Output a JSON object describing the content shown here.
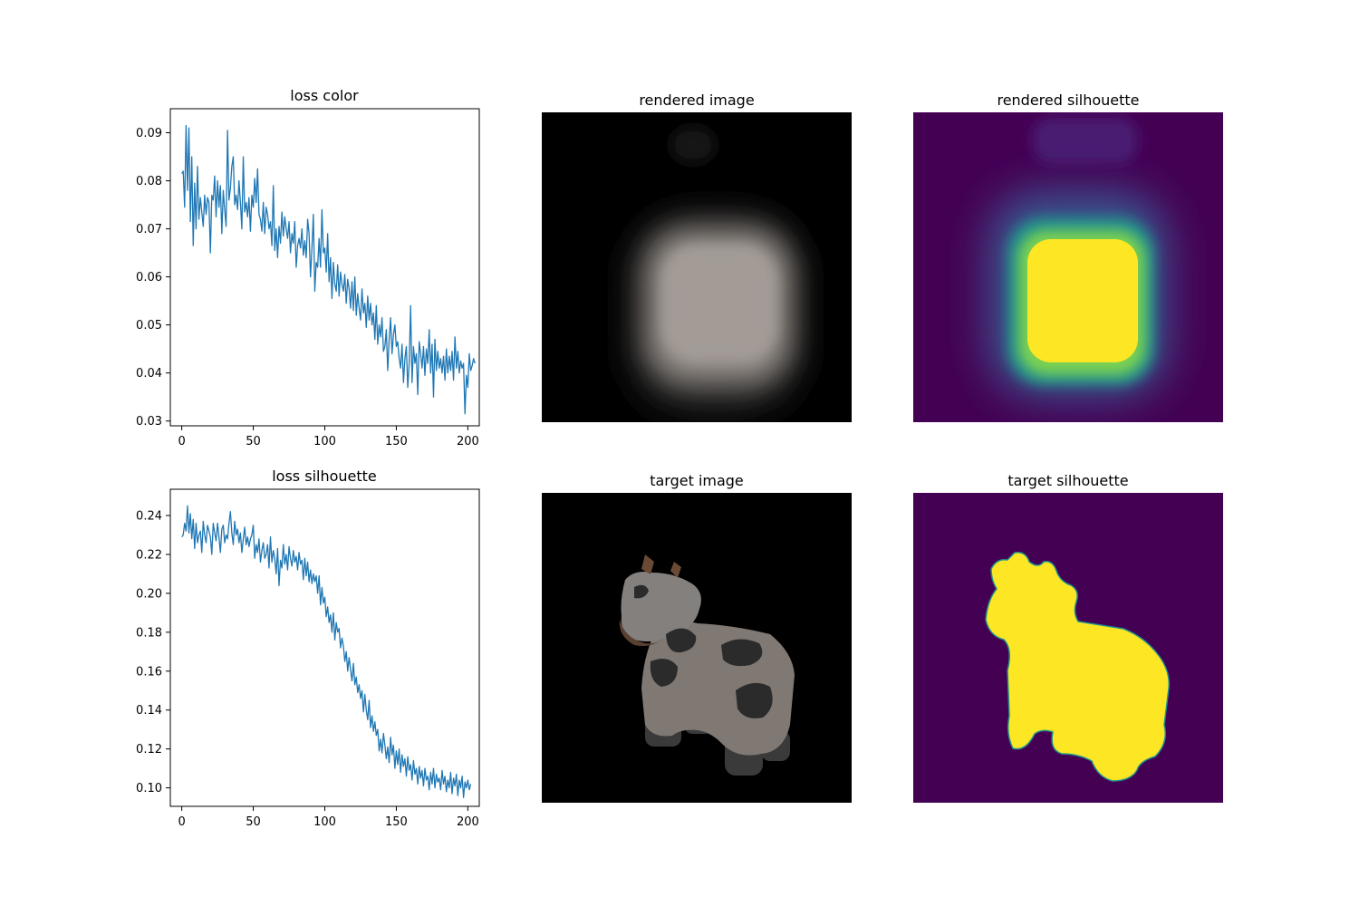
{
  "chart_data": [
    {
      "type": "line",
      "title": "loss color",
      "xlabel": "",
      "ylabel": "",
      "xlim": [
        -8,
        208
      ],
      "ylim": [
        0.029,
        0.095
      ],
      "xticks": [
        0,
        50,
        100,
        150,
        200
      ],
      "xtick_labels": [
        "0",
        "50",
        "100",
        "150",
        "200"
      ],
      "yticks": [
        0.03,
        0.04,
        0.05,
        0.06,
        0.07,
        0.08,
        0.09
      ],
      "ytick_labels": [
        "0.03",
        "0.04",
        "0.05",
        "0.06",
        "0.07",
        "0.08",
        "0.09"
      ],
      "grid": false,
      "series": [
        {
          "color": "#1f77b4",
          "x_start": 0,
          "x_step": 1,
          "y": [
            0.0815,
            0.082,
            0.0745,
            0.0915,
            0.078,
            0.091,
            0.0715,
            0.085,
            0.0665,
            0.0795,
            0.07,
            0.083,
            0.072,
            0.0765,
            0.0735,
            0.0705,
            0.077,
            0.073,
            0.0765,
            0.0755,
            0.065,
            0.077,
            0.076,
            0.081,
            0.0725,
            0.08,
            0.0745,
            0.079,
            0.069,
            0.078,
            0.074,
            0.0705,
            0.0905,
            0.076,
            0.0785,
            0.083,
            0.085,
            0.075,
            0.077,
            0.074,
            0.08,
            0.0755,
            0.07,
            0.085,
            0.0735,
            0.0755,
            0.0725,
            0.0765,
            0.0695,
            0.077,
            0.0745,
            0.0805,
            0.0755,
            0.0825,
            0.073,
            0.072,
            0.0695,
            0.0755,
            0.069,
            0.0745,
            0.073,
            0.07,
            0.0715,
            0.0665,
            0.079,
            0.0655,
            0.07,
            0.064,
            0.0705,
            0.067,
            0.0735,
            0.0685,
            0.0725,
            0.07,
            0.068,
            0.0715,
            0.065,
            0.069,
            0.067,
            0.0715,
            0.062,
            0.0665,
            0.068,
            0.066,
            0.07,
            0.0645,
            0.0675,
            0.064,
            0.072,
            0.069,
            0.06,
            0.066,
            0.073,
            0.057,
            0.063,
            0.062,
            0.068,
            0.062,
            0.074,
            0.065,
            0.066,
            0.061,
            0.069,
            0.059,
            0.064,
            0.0555,
            0.063,
            0.0585,
            0.057,
            0.0625,
            0.056,
            0.061,
            0.0585,
            0.057,
            0.0605,
            0.0545,
            0.0595,
            0.0575,
            0.0535,
            0.059,
            0.053,
            0.06,
            0.052,
            0.0565,
            0.0535,
            0.051,
            0.0575,
            0.0525,
            0.0545,
            0.0495,
            0.056,
            0.051,
            0.0545,
            0.05,
            0.0525,
            0.047,
            0.054,
            0.046,
            0.05,
            0.0475,
            0.0515,
            0.0445,
            0.0455,
            0.049,
            0.0405,
            0.047,
            0.0515,
            0.044,
            0.048,
            0.05,
            0.0455,
            0.0465,
            0.043,
            0.041,
            0.046,
            0.038,
            0.043,
            0.0455,
            0.037,
            0.042,
            0.054,
            0.038,
            0.0455,
            0.042,
            0.044,
            0.0355,
            0.0465,
            0.044,
            0.041,
            0.0455,
            0.0395,
            0.045,
            0.042,
            0.049,
            0.04,
            0.046,
            0.035,
            0.047,
            0.0405,
            0.0445,
            0.041,
            0.043,
            0.04,
            0.0435,
            0.0385,
            0.045,
            0.04,
            0.0435,
            0.0405,
            0.0445,
            0.0385,
            0.0475,
            0.041,
            0.0445,
            0.04,
            0.0425,
            0.041,
            0.042,
            0.0315,
            0.0395,
            0.037,
            0.044,
            0.0405,
            0.0415,
            0.043,
            0.042
          ]
        }
      ]
    },
    {
      "type": "line",
      "title": "loss silhouette",
      "xlabel": "",
      "ylabel": "",
      "xlim": [
        -8,
        208
      ],
      "ylim": [
        0.0905,
        0.2535
      ],
      "xticks": [
        0,
        50,
        100,
        150,
        200
      ],
      "xtick_labels": [
        "0",
        "50",
        "100",
        "150",
        "200"
      ],
      "yticks": [
        0.1,
        0.12,
        0.14,
        0.16,
        0.18,
        0.2,
        0.22,
        0.24
      ],
      "ytick_labels": [
        "0.10",
        "0.12",
        "0.14",
        "0.16",
        "0.18",
        "0.20",
        "0.22",
        "0.24"
      ],
      "grid": false,
      "series": [
        {
          "color": "#1f77b4",
          "x_start": 0,
          "x_step": 1,
          "y": [
            0.229,
            0.23,
            0.236,
            0.232,
            0.245,
            0.231,
            0.241,
            0.228,
            0.238,
            0.223,
            0.236,
            0.226,
            0.23,
            0.232,
            0.221,
            0.237,
            0.23,
            0.226,
            0.235,
            0.232,
            0.229,
            0.22,
            0.236,
            0.231,
            0.227,
            0.236,
            0.229,
            0.221,
            0.233,
            0.235,
            0.226,
            0.23,
            0.228,
            0.236,
            0.242,
            0.231,
            0.225,
            0.237,
            0.23,
            0.233,
            0.226,
            0.231,
            0.221,
            0.228,
            0.234,
            0.225,
            0.229,
            0.224,
            0.228,
            0.23,
            0.235,
            0.218,
            0.225,
            0.221,
            0.228,
            0.216,
            0.222,
            0.226,
            0.218,
            0.22,
            0.225,
            0.213,
            0.229,
            0.216,
            0.222,
            0.218,
            0.21,
            0.223,
            0.204,
            0.217,
            0.213,
            0.225,
            0.215,
            0.22,
            0.212,
            0.224,
            0.218,
            0.214,
            0.222,
            0.216,
            0.219,
            0.212,
            0.221,
            0.215,
            0.217,
            0.207,
            0.218,
            0.209,
            0.216,
            0.206,
            0.212,
            0.205,
            0.21,
            0.206,
            0.209,
            0.2,
            0.209,
            0.194,
            0.203,
            0.195,
            0.198,
            0.188,
            0.193,
            0.185,
            0.189,
            0.18,
            0.19,
            0.176,
            0.185,
            0.18,
            0.182,
            0.172,
            0.177,
            0.173,
            0.165,
            0.17,
            0.16,
            0.167,
            0.161,
            0.155,
            0.164,
            0.153,
            0.157,
            0.149,
            0.153,
            0.146,
            0.15,
            0.139,
            0.148,
            0.14,
            0.135,
            0.145,
            0.131,
            0.137,
            0.129,
            0.134,
            0.127,
            0.13,
            0.119,
            0.125,
            0.118,
            0.128,
            0.122,
            0.115,
            0.121,
            0.113,
            0.126,
            0.117,
            0.122,
            0.11,
            0.119,
            0.112,
            0.12,
            0.108,
            0.117,
            0.111,
            0.115,
            0.106,
            0.116,
            0.109,
            0.112,
            0.104,
            0.114,
            0.107,
            0.11,
            0.102,
            0.111,
            0.105,
            0.109,
            0.101,
            0.11,
            0.104,
            0.106,
            0.099,
            0.108,
            0.102,
            0.11,
            0.1,
            0.107,
            0.103,
            0.105,
            0.099,
            0.109,
            0.102,
            0.106,
            0.098,
            0.104,
            0.1,
            0.108,
            0.097,
            0.105,
            0.101,
            0.107,
            0.096,
            0.104,
            0.1,
            0.106,
            0.095,
            0.103,
            0.1,
            0.104,
            0.099,
            0.102
          ]
        }
      ]
    }
  ],
  "images": [
    {
      "title": "rendered image"
    },
    {
      "title": "rendered silhouette",
      "colormap": "viridis"
    },
    {
      "title": "target image"
    },
    {
      "title": "target silhouette",
      "colormap": "viridis"
    }
  ],
  "colors": {
    "viridis_low": "#440154",
    "viridis_high": "#fde725",
    "cow_body": "#7f7873",
    "cow_spots": "#2b2b2b",
    "cow_horns": "#6a4a35"
  }
}
